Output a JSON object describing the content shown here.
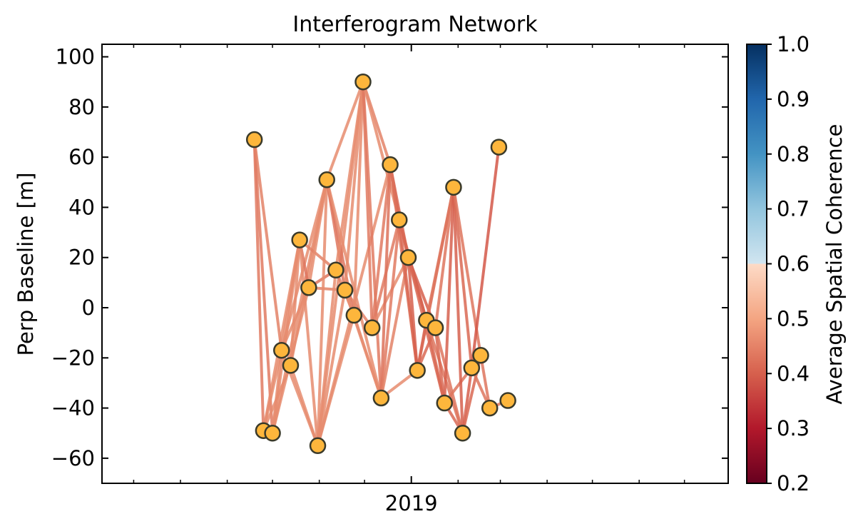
{
  "chart_data": {
    "type": "scatter",
    "title": "Interferogram Network",
    "ylabel": "Perp Baseline [m]",
    "xlabel": "",
    "ylim": [
      -70,
      105
    ],
    "yticks": [
      -60,
      -40,
      -20,
      0,
      20,
      40,
      60,
      80,
      100
    ],
    "xlim": [
      "2018-06-10",
      "2019-07-30"
    ],
    "xticks": [
      {
        "date": "2019-01-01",
        "label": "2019"
      }
    ],
    "x_minor_ticks": [
      "2018-07-01",
      "2018-08-01",
      "2018-09-01",
      "2018-10-01",
      "2018-11-01",
      "2018-12-01",
      "2019-02-01",
      "2019-03-01",
      "2019-04-01",
      "2019-05-01",
      "2019-06-01",
      "2019-07-01"
    ],
    "grid": false,
    "legend": "none",
    "colorbar": {
      "label": "Average Spatial Coherence",
      "range": [
        0.2,
        1.0
      ],
      "ticks": [
        "0.2",
        "0.3",
        "0.4",
        "0.5",
        "0.6",
        "0.7",
        "0.8",
        "0.9",
        "1.0"
      ],
      "colormap": "RdBu, white below 0.7 boundary"
    },
    "nodes": [
      {
        "date": "2018-09-19",
        "bperp": 67
      },
      {
        "date": "2018-09-25",
        "bperp": -49
      },
      {
        "date": "2018-10-01",
        "bperp": -50
      },
      {
        "date": "2018-10-07",
        "bperp": -17
      },
      {
        "date": "2018-10-13",
        "bperp": -23
      },
      {
        "date": "2018-10-19",
        "bperp": 27
      },
      {
        "date": "2018-10-25",
        "bperp": 8
      },
      {
        "date": "2018-10-31",
        "bperp": -55
      },
      {
        "date": "2018-11-06",
        "bperp": 51
      },
      {
        "date": "2018-11-12",
        "bperp": 15
      },
      {
        "date": "2018-11-18",
        "bperp": 7
      },
      {
        "date": "2018-11-24",
        "bperp": -3
      },
      {
        "date": "2018-11-30",
        "bperp": 90
      },
      {
        "date": "2018-12-06",
        "bperp": -8
      },
      {
        "date": "2018-12-12",
        "bperp": -36
      },
      {
        "date": "2018-12-18",
        "bperp": 57
      },
      {
        "date": "2018-12-24",
        "bperp": 35
      },
      {
        "date": "2018-12-30",
        "bperp": 20
      },
      {
        "date": "2019-01-05",
        "bperp": -25
      },
      {
        "date": "2019-01-11",
        "bperp": -5
      },
      {
        "date": "2019-01-17",
        "bperp": -8
      },
      {
        "date": "2019-01-23",
        "bperp": -38
      },
      {
        "date": "2019-01-29",
        "bperp": 48
      },
      {
        "date": "2019-02-04",
        "bperp": -50
      },
      {
        "date": "2019-02-10",
        "bperp": -24
      },
      {
        "date": "2019-02-16",
        "bperp": -19
      },
      {
        "date": "2019-02-22",
        "bperp": -40
      },
      {
        "date": "2019-02-28",
        "bperp": 64
      },
      {
        "date": "2019-03-06",
        "bperp": -37
      }
    ],
    "pairs": [
      [
        0,
        1,
        0.56
      ],
      [
        0,
        2,
        0.56
      ],
      [
        0,
        3,
        0.58
      ],
      [
        1,
        3,
        0.6
      ],
      [
        1,
        4,
        0.6
      ],
      [
        1,
        5,
        0.6
      ],
      [
        2,
        3,
        0.6
      ],
      [
        2,
        5,
        0.6
      ],
      [
        2,
        6,
        0.6
      ],
      [
        2,
        8,
        0.6
      ],
      [
        3,
        5,
        0.6
      ],
      [
        3,
        6,
        0.6
      ],
      [
        3,
        7,
        0.6
      ],
      [
        3,
        8,
        0.6
      ],
      [
        4,
        5,
        0.6
      ],
      [
        4,
        7,
        0.6
      ],
      [
        4,
        8,
        0.6
      ],
      [
        5,
        6,
        0.55
      ],
      [
        5,
        9,
        0.58
      ],
      [
        5,
        7,
        0.6
      ],
      [
        6,
        9,
        0.55
      ],
      [
        6,
        10,
        0.58
      ],
      [
        6,
        8,
        0.6
      ],
      [
        7,
        8,
        0.6
      ],
      [
        7,
        9,
        0.6
      ],
      [
        7,
        10,
        0.6
      ],
      [
        7,
        11,
        0.6
      ],
      [
        7,
        12,
        0.6
      ],
      [
        7,
        15,
        0.6
      ],
      [
        8,
        10,
        0.55
      ],
      [
        8,
        11,
        0.55
      ],
      [
        8,
        12,
        0.6
      ],
      [
        8,
        14,
        0.6
      ],
      [
        9,
        11,
        0.58
      ],
      [
        9,
        12,
        0.6
      ],
      [
        10,
        12,
        0.6
      ],
      [
        10,
        13,
        0.58
      ],
      [
        10,
        14,
        0.6
      ],
      [
        11,
        12,
        0.6
      ],
      [
        11,
        14,
        0.6
      ],
      [
        12,
        13,
        0.56
      ],
      [
        12,
        14,
        0.56
      ],
      [
        12,
        15,
        0.58
      ],
      [
        12,
        16,
        0.6
      ],
      [
        13,
        15,
        0.56
      ],
      [
        13,
        16,
        0.56
      ],
      [
        13,
        17,
        0.6
      ],
      [
        14,
        15,
        0.54
      ],
      [
        14,
        16,
        0.56
      ],
      [
        14,
        17,
        0.58
      ],
      [
        14,
        18,
        0.6
      ],
      [
        15,
        16,
        0.5
      ],
      [
        15,
        17,
        0.52
      ],
      [
        15,
        18,
        0.54
      ],
      [
        16,
        17,
        0.5
      ],
      [
        16,
        18,
        0.52
      ],
      [
        16,
        19,
        0.52
      ],
      [
        17,
        18,
        0.5
      ],
      [
        17,
        19,
        0.5
      ],
      [
        17,
        20,
        0.5
      ],
      [
        17,
        21,
        0.52
      ],
      [
        18,
        19,
        0.5
      ],
      [
        18,
        20,
        0.52
      ],
      [
        18,
        22,
        0.52
      ],
      [
        19,
        20,
        0.5
      ],
      [
        19,
        21,
        0.52
      ],
      [
        19,
        22,
        0.55
      ],
      [
        19,
        23,
        0.55
      ],
      [
        20,
        21,
        0.52
      ],
      [
        20,
        22,
        0.55
      ],
      [
        20,
        23,
        0.55
      ],
      [
        21,
        22,
        0.5
      ],
      [
        21,
        23,
        0.52
      ],
      [
        21,
        24,
        0.55
      ],
      [
        22,
        23,
        0.5
      ],
      [
        22,
        24,
        0.52
      ],
      [
        22,
        25,
        0.55
      ],
      [
        23,
        24,
        0.5
      ],
      [
        23,
        25,
        0.52
      ],
      [
        24,
        25,
        0.5
      ],
      [
        24,
        27,
        0.48
      ],
      [
        24,
        26,
        0.55
      ],
      [
        25,
        26,
        0.55
      ],
      [
        26,
        28,
        0.55
      ]
    ]
  }
}
